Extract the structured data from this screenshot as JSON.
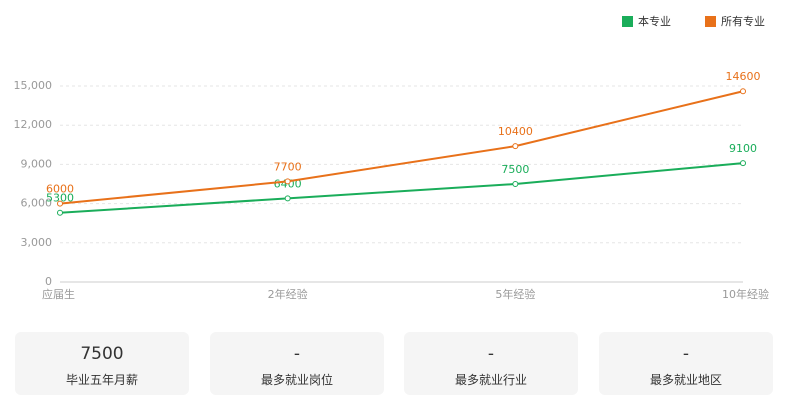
{
  "chart_data": {
    "type": "line",
    "categories": [
      "应届生",
      "2年经验",
      "5年经验",
      "10年经验"
    ],
    "series": [
      {
        "name": "本专业",
        "color": "#1aad5a",
        "values": [
          5300,
          6400,
          7500,
          9100
        ]
      },
      {
        "name": "所有专业",
        "color": "#e8711a",
        "values": [
          6000,
          7700,
          10400,
          14600
        ]
      }
    ],
    "ylim": [
      0,
      15000
    ],
    "yticks": [
      0,
      {
        "value": 3000,
        "label": "3,000"
      },
      {
        "value": 6000,
        "label": "6,000"
      },
      {
        "value": 9000,
        "label": "9,000"
      },
      {
        "value": 12000,
        "label": "12,000"
      },
      {
        "value": 15000,
        "label": "15,000"
      }
    ],
    "grid": true,
    "legend": "top-right",
    "data_labels": true
  },
  "cards": [
    {
      "value": 7500,
      "label": "毕业五年月薪"
    },
    {
      "value": "-",
      "label": "最多就业岗位"
    },
    {
      "value": "-",
      "label": "最多就业行业"
    },
    {
      "value": "-",
      "label": "最多就业地区"
    }
  ]
}
